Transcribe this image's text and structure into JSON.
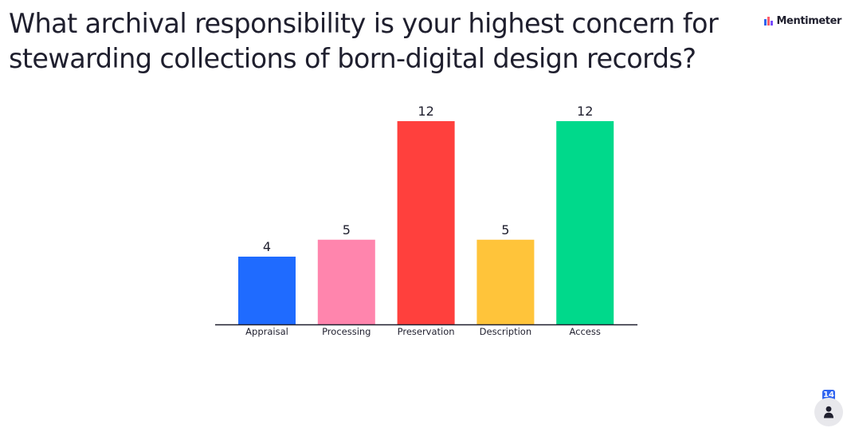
{
  "question": {
    "title": "What archival responsibility is your highest concern for stewarding collections of born-digital design records?"
  },
  "brand": {
    "name": "Mentimeter",
    "icon": "mentimeter-logo-icon"
  },
  "participants": {
    "count": "14",
    "icon": "person-icon"
  },
  "chart_data": {
    "type": "bar",
    "categories": [
      "Appraisal",
      "Processing",
      "Preservation",
      "Description",
      "Access"
    ],
    "values": [
      4,
      5,
      12,
      5,
      12
    ],
    "colors": [
      "#1f6bff",
      "#ff85ad",
      "#ff403d",
      "#ffc43a",
      "#00d98b"
    ],
    "title": "",
    "xlabel": "",
    "ylabel": "",
    "ylim": [
      0,
      12
    ],
    "grid": false,
    "data_labels": true
  }
}
